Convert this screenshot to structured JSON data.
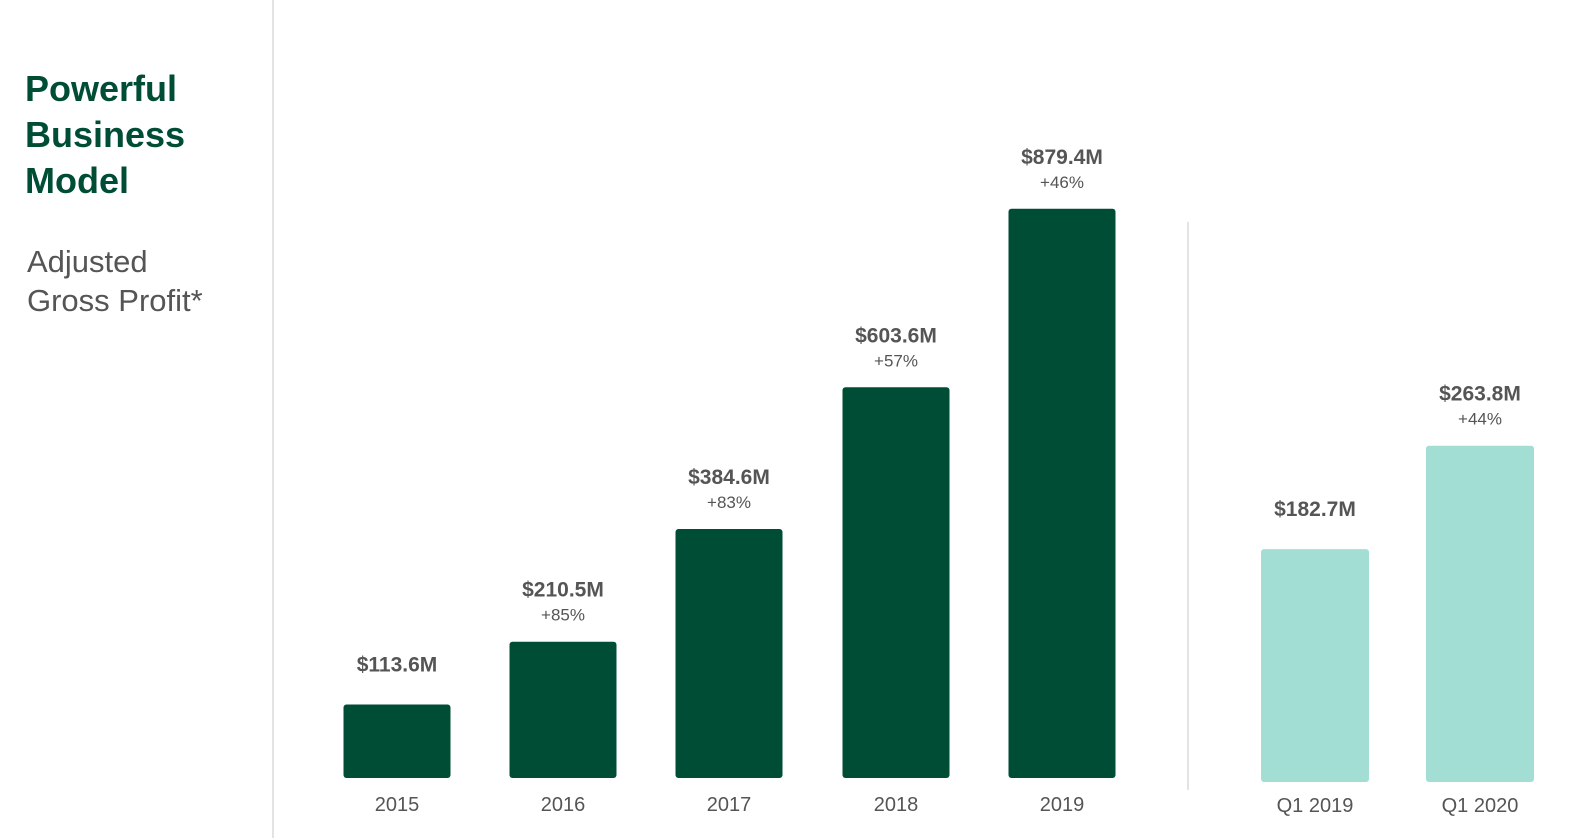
{
  "header": {
    "title_lines": [
      "Powerful",
      "Business",
      "Model"
    ],
    "subtitle_lines": [
      "Adjusted",
      "Gross Profit*"
    ]
  },
  "colors": {
    "title": "#004d36",
    "annual_bar": "#004d36",
    "quarterly_bar": "#a3ded5",
    "label": "#555555"
  },
  "chart_data": [
    {
      "type": "bar",
      "categories": [
        "2015",
        "2016",
        "2017",
        "2018",
        "2019"
      ],
      "values": [
        113.6,
        210.5,
        384.6,
        603.6,
        879.4
      ],
      "value_labels": [
        "$113.6M",
        "$210.5M",
        "$384.6M",
        "$603.6M",
        "$879.4M"
      ],
      "growth_labels": [
        "",
        "+85%",
        "+83%",
        "+57%",
        "+46%"
      ],
      "unit": "$M",
      "bar_color": "#004d36",
      "ylim": [
        0,
        1000
      ],
      "grid": false
    },
    {
      "type": "bar",
      "categories": [
        "Q1 2019",
        "Q1 2020"
      ],
      "values": [
        182.7,
        263.8
      ],
      "value_labels": [
        "$182.7M",
        "$263.8M"
      ],
      "growth_labels": [
        "",
        "+44%"
      ],
      "unit": "$M",
      "bar_color": "#a3ded5",
      "ylim": [
        0,
        340
      ],
      "grid": false
    }
  ]
}
